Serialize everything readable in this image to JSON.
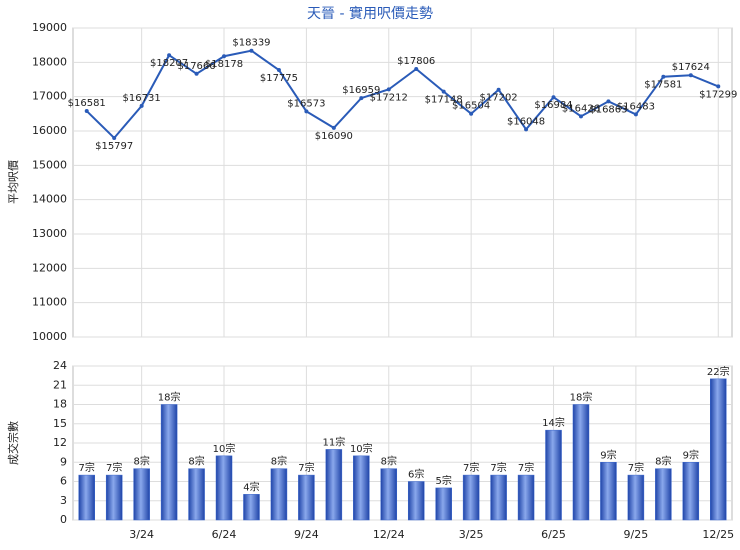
{
  "chart_data": [
    {
      "type": "line",
      "title": "天晉 - 實用呎價走勢",
      "y_label": "平均呎價",
      "color": "#2a5bb8",
      "values": [
        16581,
        15797,
        16731,
        18207,
        17666,
        18178,
        18339,
        17775,
        16573,
        16090,
        16959,
        17212,
        17806,
        17148,
        16504,
        17202,
        16048,
        16984,
        16426,
        16863,
        16483,
        17581,
        17624,
        17299
      ],
      "value_labels": [
        "$16581",
        "$15797",
        "$16731",
        "$18207",
        "$17666",
        "$18178",
        "$18339",
        "$17775",
        "$16573",
        "$16090",
        "$16959",
        "$17212",
        "$17806",
        "$17148",
        "$16504",
        "$17202",
        "$16048",
        "$16984",
        "$16426",
        "$16863",
        "$16483",
        "$17581",
        "$17624",
        "$17299"
      ],
      "ylim": [
        10000,
        19000
      ],
      "yticks": [
        10000,
        11000,
        12000,
        13000,
        14000,
        15000,
        16000,
        17000,
        18000,
        19000
      ],
      "grid": true
    },
    {
      "type": "bar",
      "y_label": "成交宗數",
      "color": "#3a66cc",
      "categories": [
        null,
        null,
        "3/24",
        null,
        null,
        "6/24",
        null,
        null,
        "9/24",
        null,
        null,
        "12/24",
        null,
        null,
        "3/25",
        null,
        null,
        "6/25",
        null,
        null,
        "9/25",
        null,
        null,
        "12/25"
      ],
      "values": [
        7,
        7,
        8,
        18,
        8,
        10,
        4,
        8,
        7,
        11,
        10,
        8,
        6,
        5,
        7,
        7,
        7,
        14,
        18,
        9,
        7,
        8,
        9,
        22
      ],
      "value_labels": [
        "7宗",
        "7宗",
        "8宗",
        "18宗",
        "8宗",
        "10宗",
        "4宗",
        "8宗",
        "7宗",
        "11宗",
        "10宗",
        "8宗",
        "6宗",
        "5宗",
        "7宗",
        "7宗",
        "7宗",
        "14宗",
        "18宗",
        "9宗",
        "7宗",
        "8宗",
        "9宗",
        "22宗"
      ],
      "ylim": [
        0,
        24
      ],
      "yticks": [
        0,
        3,
        6,
        9,
        12,
        15,
        18,
        21,
        24
      ],
      "grid": true
    }
  ]
}
